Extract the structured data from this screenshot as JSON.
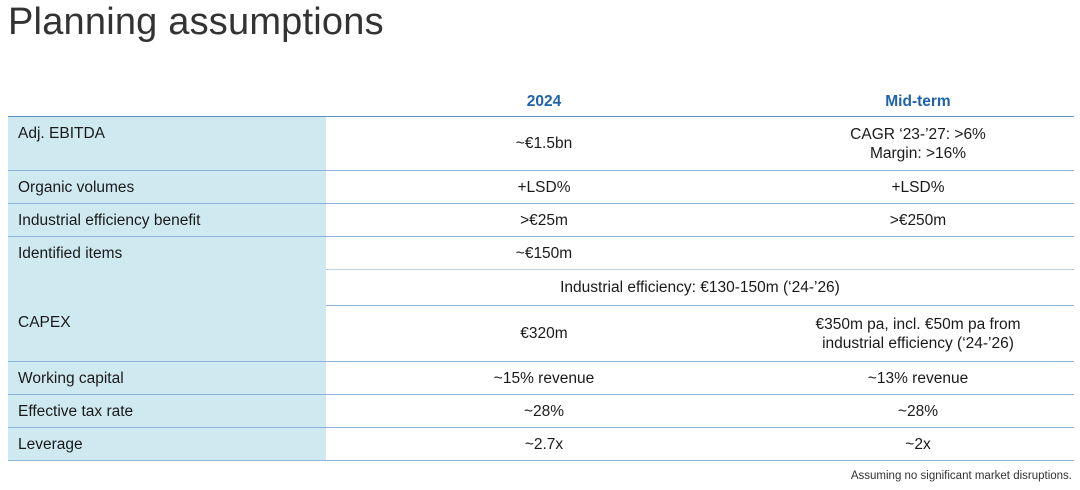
{
  "title": "Planning assumptions",
  "columns": {
    "year": "2024",
    "mid": "Mid-term"
  },
  "rows": {
    "ebitda": {
      "label": "Adj. EBITDA",
      "y2024": "~€1.5bn",
      "mid_line1": "CAGR ‘23-’27: >6%",
      "mid_line2": "Margin: >16%"
    },
    "organic": {
      "label": "Organic volumes",
      "y2024": "+LSD%",
      "mid": "+LSD%"
    },
    "efficiency": {
      "label": "Industrial efficiency benefit",
      "y2024": ">€25m",
      "mid": ">€250m"
    },
    "identified": {
      "label": "Identified items",
      "y2024": "~€150m",
      "sub": "Industrial efficiency: €130-150m (‘24-’26)"
    },
    "capex": {
      "label": "CAPEX",
      "y2024": "€320m",
      "mid_line1": "€350m pa, incl. €50m pa from",
      "mid_line2": "industrial efficiency (‘24-’26)"
    },
    "working": {
      "label": "Working capital",
      "y2024": "~15% revenue",
      "mid": "~13% revenue"
    },
    "tax": {
      "label": "Effective tax rate",
      "y2024": "~28%",
      "mid": "~28%"
    },
    "leverage": {
      "label": "Leverage",
      "y2024": "~2.7x",
      "mid": "~2x"
    }
  },
  "footnote": "Assuming no significant market disruptions.",
  "colors": {
    "label_bg": "#cfe9f1",
    "header": "#1f63a8",
    "rule": "#8cb3d6"
  }
}
